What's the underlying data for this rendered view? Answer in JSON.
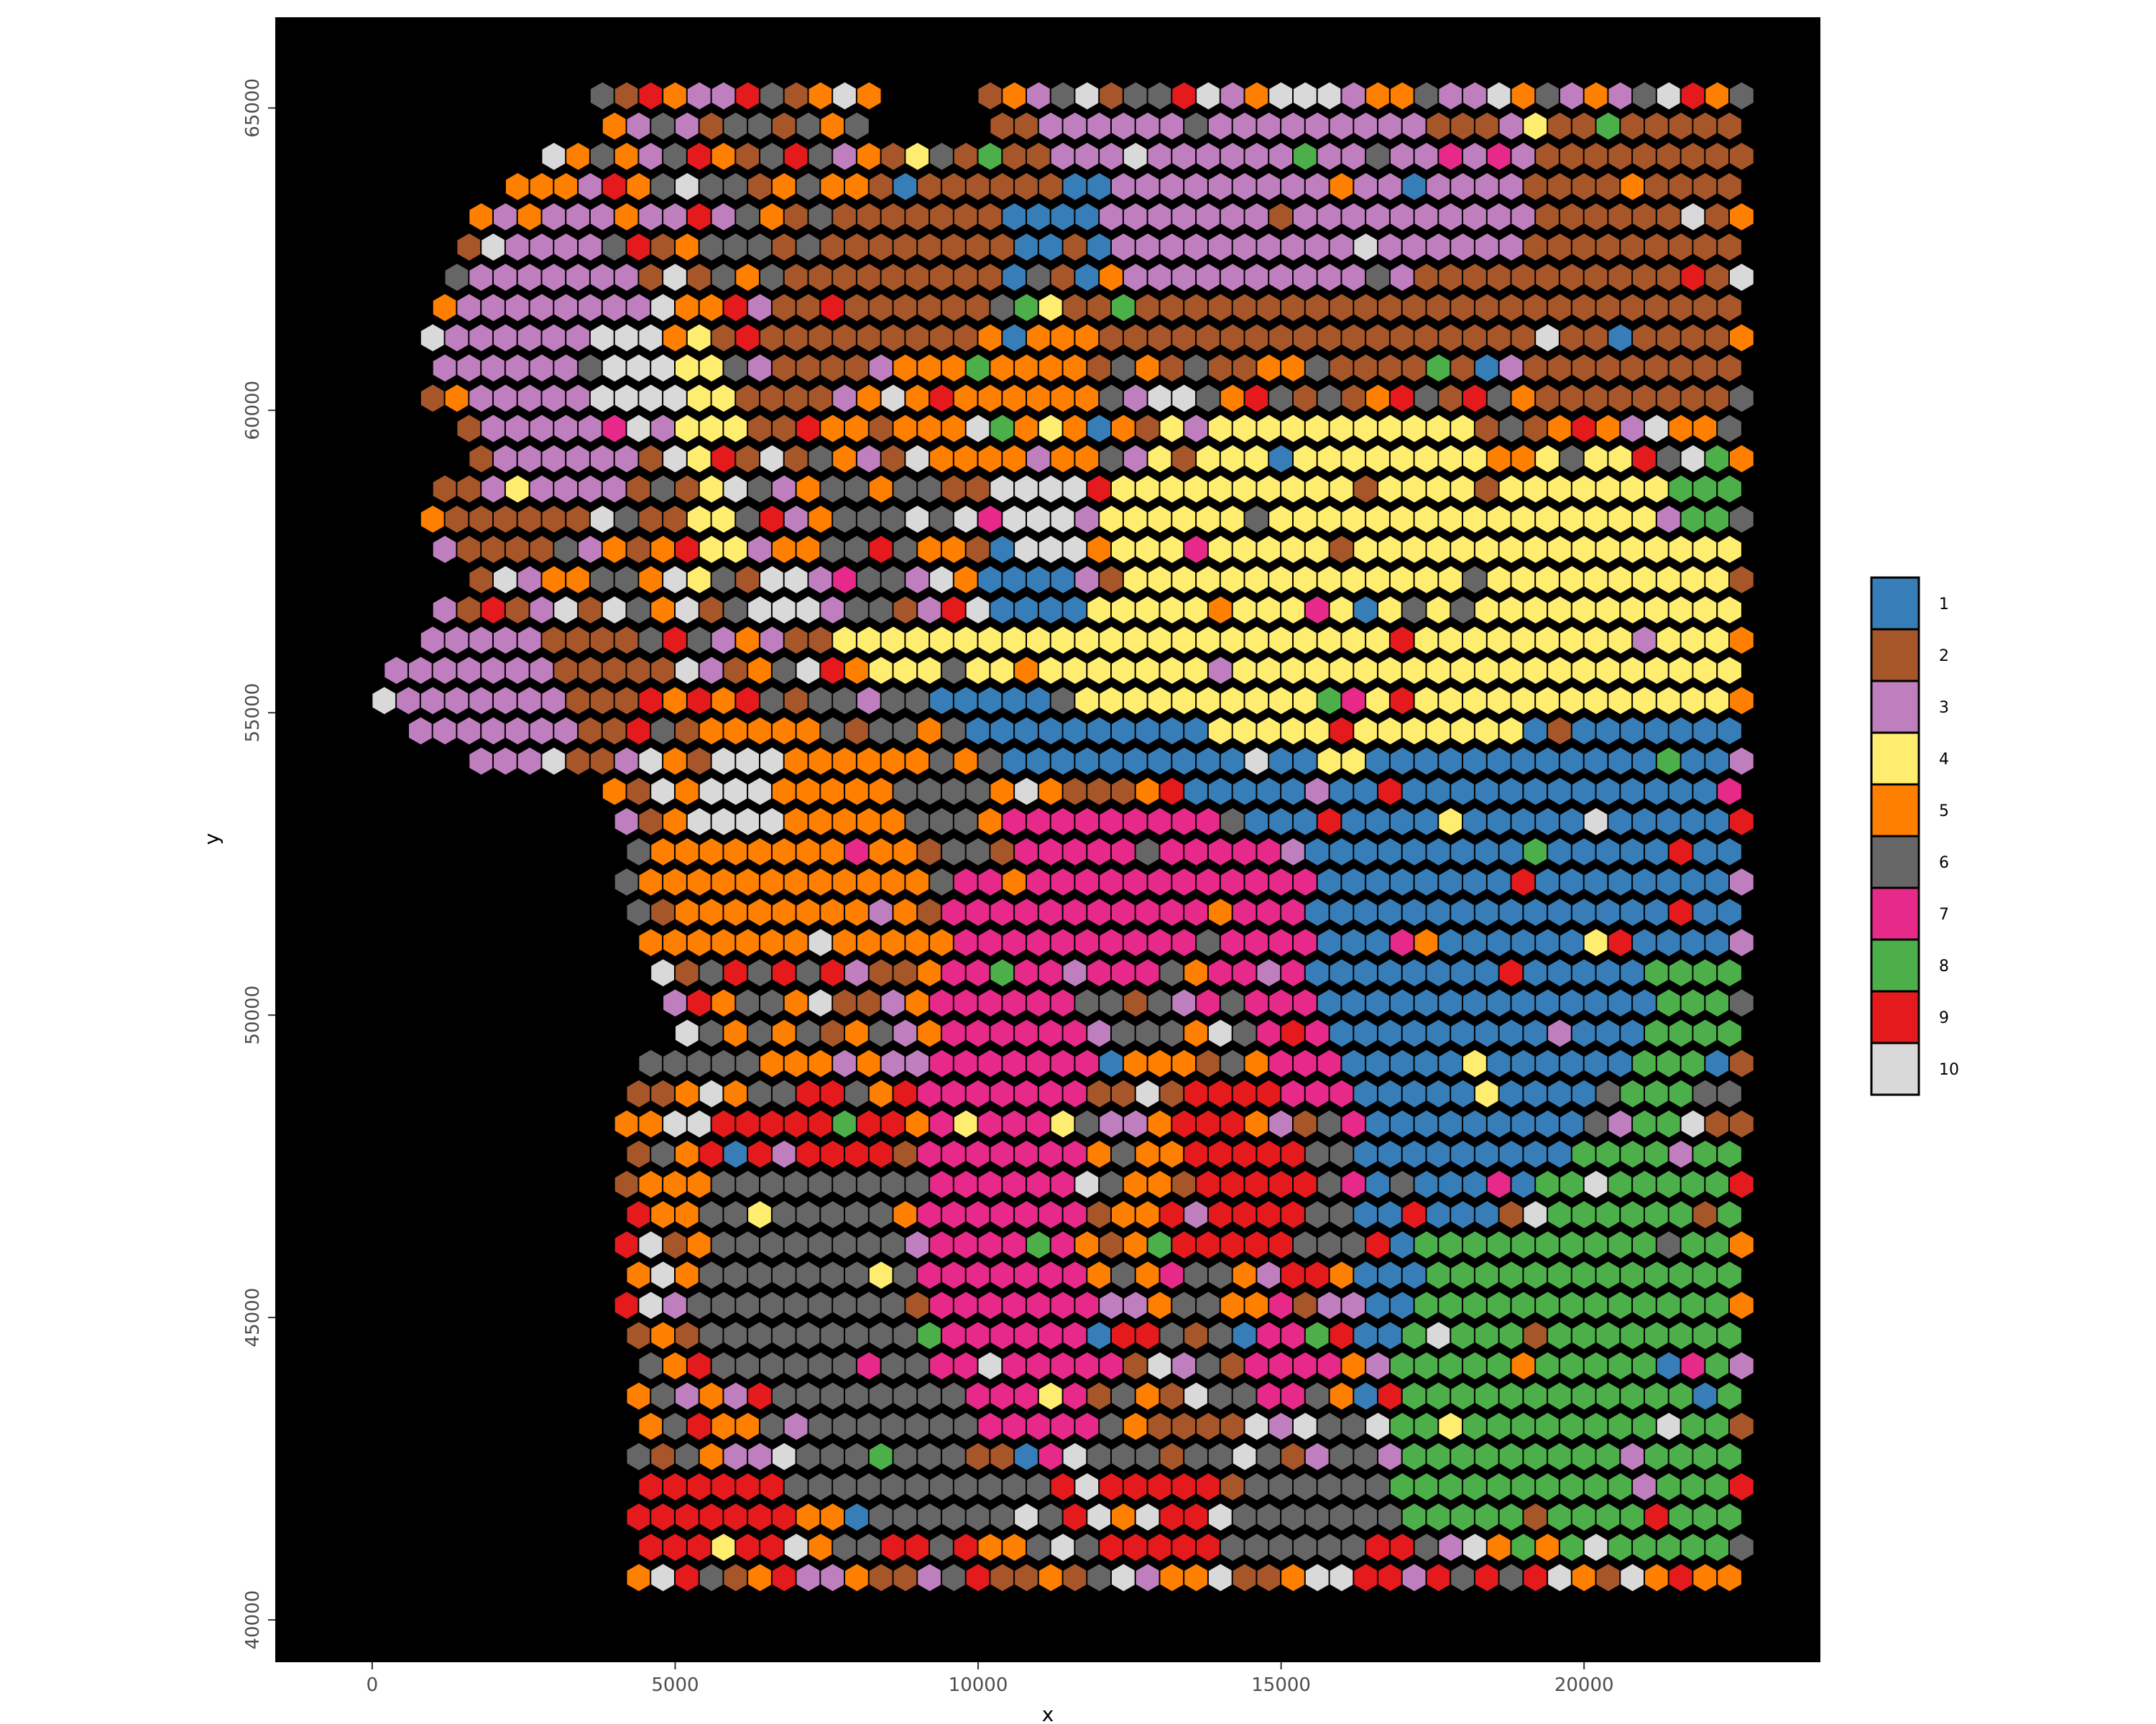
{
  "chart_data": {
    "type": "scatter",
    "marker": "hexagon",
    "title": "",
    "xlabel": "x",
    "ylabel": "y",
    "xlim": [
      -1600,
      23900
    ],
    "ylim": [
      39300,
      66500
    ],
    "x_ticks": [
      0,
      5000,
      10000,
      15000,
      20000
    ],
    "y_ticks": [
      40000,
      45000,
      50000,
      55000,
      60000,
      65000
    ],
    "x_tick_labels": [
      "0",
      "5000",
      "10000",
      "15000",
      "20000"
    ],
    "y_tick_labels": [
      "40000",
      "45000",
      "50000",
      "55000",
      "60000",
      "65000"
    ],
    "panel_background": "#000000",
    "legend_position": "right",
    "grid": false,
    "grid_spacing": {
      "x": 400,
      "y": 500
    },
    "categories": [
      "1",
      "2",
      "3",
      "4",
      "5",
      "6",
      "7",
      "8",
      "9",
      "10"
    ],
    "colors": {
      "1": "#377EB8",
      "2": "#A65628",
      "3": "#BF7FBF",
      "4": "#FFED6F",
      "5": "#FF7F00",
      "6": "#666666",
      "7": "#E7298A",
      "8": "#4DAF4A",
      "9": "#E41A1C",
      "10": "#D9D9D9"
    },
    "regions": [
      {
        "cluster": "2",
        "polygon": [
          [
            3800,
            57000
          ],
          [
            9000,
            65200
          ],
          [
            22600,
            65200
          ],
          [
            22600,
            59800
          ],
          [
            15000,
            60800
          ],
          [
            9000,
            61200
          ]
        ]
      },
      {
        "cluster": "2",
        "polygon": [
          [
            0,
            55000
          ],
          [
            3800,
            57000
          ],
          [
            4600,
            55500
          ],
          [
            3600,
            53800
          ],
          [
            800,
            54200
          ]
        ]
      },
      {
        "cluster": "2",
        "polygon": [
          [
            800,
            59000
          ],
          [
            3800,
            62500
          ],
          [
            3800,
            58000
          ],
          [
            1800,
            57000
          ]
        ]
      },
      {
        "cluster": "3",
        "polygon": [
          [
            1200,
            62000
          ],
          [
            3800,
            64200
          ],
          [
            4400,
            58500
          ],
          [
            2000,
            58500
          ]
        ]
      },
      {
        "cluster": "3",
        "polygon": [
          [
            0,
            55500
          ],
          [
            800,
            56800
          ],
          [
            2800,
            56500
          ],
          [
            3600,
            54400
          ],
          [
            1400,
            53800
          ]
        ]
      },
      {
        "cluster": "3",
        "polygon": [
          [
            10600,
            65200
          ],
          [
            17600,
            65200
          ],
          [
            17000,
            62000
          ],
          [
            12000,
            62200
          ]
        ]
      },
      {
        "cluster": "3",
        "polygon": [
          [
            15000,
            63800
          ],
          [
            19000,
            64800
          ],
          [
            19200,
            62600
          ],
          [
            15800,
            62000
          ]
        ]
      },
      {
        "cluster": "4",
        "polygon": [
          [
            12200,
            58600
          ],
          [
            13200,
            60000
          ],
          [
            15800,
            60200
          ],
          [
            22600,
            58800
          ],
          [
            22600,
            54800
          ],
          [
            20000,
            55200
          ],
          [
            16500,
            53600
          ],
          [
            12500,
            55100
          ],
          [
            7000,
            55800
          ],
          [
            8500,
            56600
          ],
          [
            11800,
            56500
          ]
        ]
      },
      {
        "cluster": "4",
        "polygon": [
          [
            5000,
            60500
          ],
          [
            5400,
            61800
          ],
          [
            6200,
            60000
          ],
          [
            6200,
            57400
          ],
          [
            5400,
            57000
          ]
        ]
      },
      {
        "cluster": "1",
        "polygon": [
          [
            9200,
            55400
          ],
          [
            12200,
            55100
          ],
          [
            15800,
            54100
          ],
          [
            19600,
            54800
          ],
          [
            22600,
            55200
          ],
          [
            22600,
            51000
          ],
          [
            21000,
            49800
          ],
          [
            19200,
            47000
          ],
          [
            17400,
            46200
          ],
          [
            16400,
            43000
          ],
          [
            16200,
            49000
          ],
          [
            15400,
            50600
          ],
          [
            15600,
            52600
          ],
          [
            13000,
            54000
          ],
          [
            10600,
            53800
          ]
        ]
      },
      {
        "cluster": "1",
        "polygon": [
          [
            9600,
            56800
          ],
          [
            10200,
            57800
          ],
          [
            11600,
            58000
          ],
          [
            11800,
            56300
          ]
        ]
      },
      {
        "cluster": "1",
        "polygon": [
          [
            10400,
            63600
          ],
          [
            12200,
            63800
          ],
          [
            12000,
            62000
          ],
          [
            10600,
            62000
          ]
        ]
      },
      {
        "cluster": "8",
        "polygon": [
          [
            21200,
            51000
          ],
          [
            22600,
            51200
          ],
          [
            22600,
            41000
          ],
          [
            20800,
            41000
          ],
          [
            17000,
            41400
          ],
          [
            16600,
            44000
          ],
          [
            17400,
            46200
          ],
          [
            19200,
            47000
          ],
          [
            20600,
            48400
          ]
        ]
      },
      {
        "cluster": "8",
        "polygon": [
          [
            21400,
            59000
          ],
          [
            22600,
            59400
          ],
          [
            22600,
            57800
          ],
          [
            21600,
            58000
          ]
        ]
      },
      {
        "cluster": "7",
        "polygon": [
          [
            9800,
            52400
          ],
          [
            10400,
            53200
          ],
          [
            13200,
            53600
          ],
          [
            15600,
            52400
          ],
          [
            15600,
            50200
          ],
          [
            16400,
            48600
          ],
          [
            16400,
            46800
          ],
          [
            15200,
            48600
          ],
          [
            14600,
            50000
          ],
          [
            12800,
            50400
          ],
          [
            11800,
            48800
          ],
          [
            11600,
            45800
          ],
          [
            12600,
            44200
          ],
          [
            12000,
            42800
          ],
          [
            10200,
            42400
          ],
          [
            9200,
            44000
          ],
          [
            9000,
            47000
          ],
          [
            9400,
            51000
          ]
        ]
      },
      {
        "cluster": "7",
        "polygon": [
          [
            14200,
            44800
          ],
          [
            15200,
            45600
          ],
          [
            16000,
            44000
          ],
          [
            14800,
            43200
          ]
        ]
      },
      {
        "cluster": "9",
        "polygon": [
          [
            5200,
            48800
          ],
          [
            7200,
            48200
          ],
          [
            9000,
            48800
          ],
          [
            8600,
            46600
          ],
          [
            7000,
            47400
          ],
          [
            5600,
            47600
          ]
        ]
      },
      {
        "cluster": "9",
        "polygon": [
          [
            6400,
            52200
          ],
          [
            7800,
            52400
          ],
          [
            7600,
            50800
          ],
          [
            6600,
            50600
          ]
        ]
      },
      {
        "cluster": "9",
        "polygon": [
          [
            13200,
            48800
          ],
          [
            14600,
            49200
          ],
          [
            15800,
            47600
          ],
          [
            15000,
            45800
          ],
          [
            13400,
            46200
          ]
        ]
      },
      {
        "cluster": "9",
        "polygon": [
          [
            6600,
            45800
          ],
          [
            8200,
            46400
          ],
          [
            8200,
            44800
          ],
          [
            6600,
            45000
          ]
        ]
      },
      {
        "cluster": "9",
        "polygon": [
          [
            12200,
            42400
          ],
          [
            14200,
            42600
          ],
          [
            14200,
            41000
          ],
          [
            12000,
            41000
          ]
        ]
      },
      {
        "cluster": "9",
        "polygon": [
          [
            4400,
            42400
          ],
          [
            7000,
            42600
          ],
          [
            6800,
            41000
          ],
          [
            4400,
            41000
          ]
        ]
      },
      {
        "cluster": "5",
        "polygon": [
          [
            4800,
            53600
          ],
          [
            9200,
            54800
          ],
          [
            9200,
            52400
          ],
          [
            8000,
            50800
          ],
          [
            6000,
            51000
          ],
          [
            4800,
            52000
          ]
        ]
      },
      {
        "cluster": "5",
        "polygon": [
          [
            8400,
            61000
          ],
          [
            11800,
            61600
          ],
          [
            12200,
            59000
          ],
          [
            9600,
            58800
          ]
        ]
      },
      {
        "cluster": "5",
        "polygon": [
          [
            4600,
            47400
          ],
          [
            6000,
            47800
          ],
          [
            6200,
            46000
          ],
          [
            4800,
            45800
          ]
        ]
      },
      {
        "cluster": "5",
        "polygon": [
          [
            12600,
            48000
          ],
          [
            13400,
            48400
          ],
          [
            13200,
            45400
          ],
          [
            12600,
            45600
          ]
        ]
      },
      {
        "cluster": "5",
        "polygon": [
          [
            7400,
            43000
          ],
          [
            9000,
            43000
          ],
          [
            9000,
            41400
          ],
          [
            7400,
            41400
          ]
        ]
      },
      {
        "cluster": "6",
        "polygon": [
          [
            5600,
            47400
          ],
          [
            8600,
            47600
          ],
          [
            9000,
            44400
          ],
          [
            10400,
            43000
          ],
          [
            10200,
            41400
          ],
          [
            7000,
            41800
          ],
          [
            6800,
            43600
          ],
          [
            5200,
            44800
          ]
        ]
      },
      {
        "cluster": "6",
        "polygon": [
          [
            11800,
            50200
          ],
          [
            13200,
            50800
          ],
          [
            13400,
            49600
          ],
          [
            12000,
            49000
          ]
        ]
      },
      {
        "cluster": "6",
        "polygon": [
          [
            14000,
            41800
          ],
          [
            16400,
            42800
          ],
          [
            16400,
            41000
          ],
          [
            14000,
            41000
          ]
        ]
      },
      {
        "cluster": "6",
        "polygon": [
          [
            15600,
            48000
          ],
          [
            16200,
            48800
          ],
          [
            16200,
            45600
          ],
          [
            15400,
            46200
          ]
        ]
      },
      {
        "cluster": "6",
        "polygon": [
          [
            9000,
            53800
          ],
          [
            10200,
            53800
          ],
          [
            10000,
            52400
          ],
          [
            9000,
            52400
          ]
        ]
      },
      {
        "cluster": "6",
        "polygon": [
          [
            7600,
            58400
          ],
          [
            8600,
            58600
          ],
          [
            8800,
            57200
          ],
          [
            7600,
            57000
          ]
        ]
      },
      {
        "cluster": "10",
        "polygon": [
          [
            9800,
            59000
          ],
          [
            11800,
            59000
          ],
          [
            11800,
            57600
          ],
          [
            9800,
            57800
          ]
        ]
      },
      {
        "cluster": "10",
        "polygon": [
          [
            5600,
            54400
          ],
          [
            6800,
            54200
          ],
          [
            6800,
            52800
          ],
          [
            5400,
            53200
          ]
        ]
      },
      {
        "cluster": "10",
        "polygon": [
          [
            3800,
            61200
          ],
          [
            5200,
            62200
          ],
          [
            4800,
            60200
          ],
          [
            3800,
            60000
          ]
        ]
      }
    ]
  }
}
